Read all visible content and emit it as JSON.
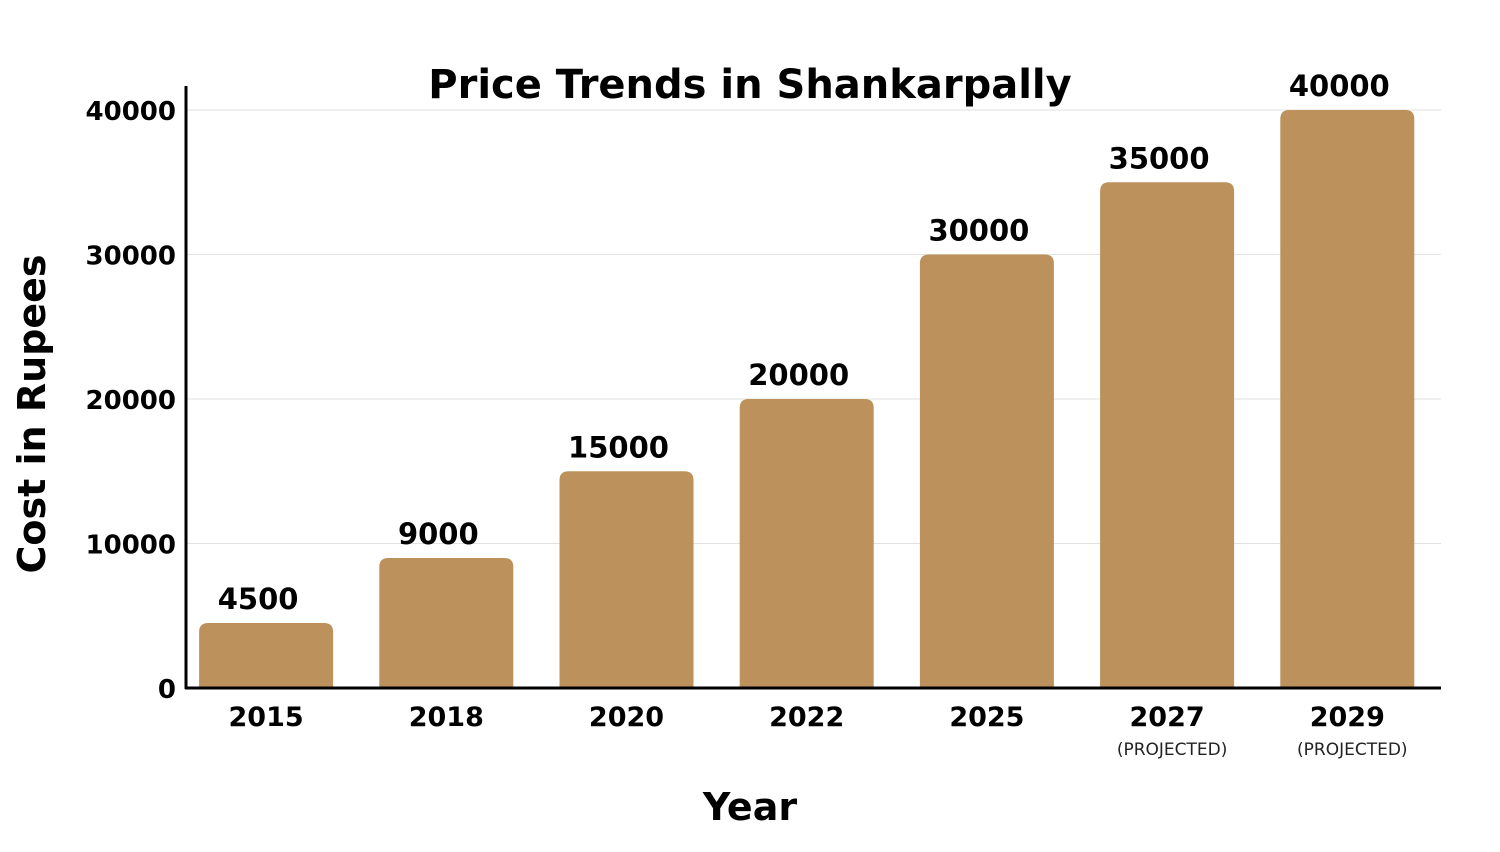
{
  "chart_data": {
    "type": "bar",
    "title": "Price Trends in Shankarpally",
    "xlabel": "Year",
    "ylabel": "Cost in Rupees",
    "categories": [
      "2015",
      "2018",
      "2020",
      "2022",
      "2025",
      "2027",
      "2029"
    ],
    "category_notes": [
      "",
      "",
      "",
      "",
      "",
      "(PROJECTED)",
      "(PROJECTED)"
    ],
    "values": [
      4500,
      9000,
      15000,
      20000,
      30000,
      35000,
      40000
    ],
    "data_labels": [
      "4500",
      "9000",
      "15000",
      "20000",
      "30000",
      "35000",
      "40000"
    ],
    "yticks": [
      0,
      10000,
      20000,
      30000,
      40000
    ],
    "ylim": [
      0,
      40000
    ],
    "grid": true,
    "legend": "none",
    "bar_color": "#bd915c"
  }
}
